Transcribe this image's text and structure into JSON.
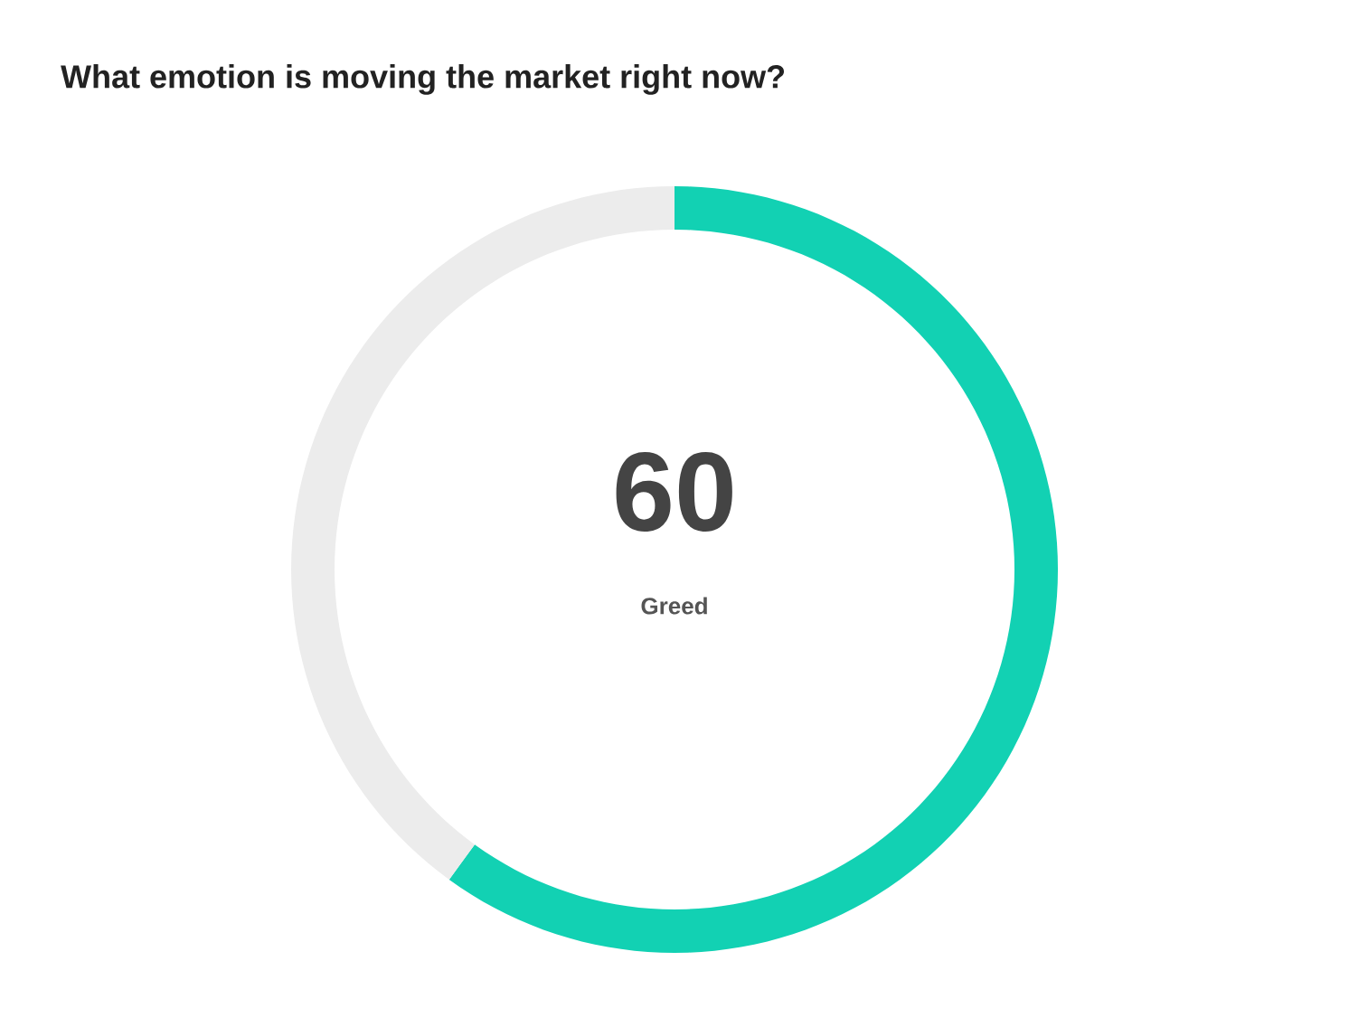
{
  "chart_data": {
    "type": "donut",
    "title": "What emotion is moving the market right now?",
    "categories": [
      "Greed",
      null
    ],
    "values": [
      60,
      40
    ],
    "value_labels": [
      "60",
      null
    ],
    "colors": [
      "#12d1b3",
      "#ececec"
    ]
  }
}
